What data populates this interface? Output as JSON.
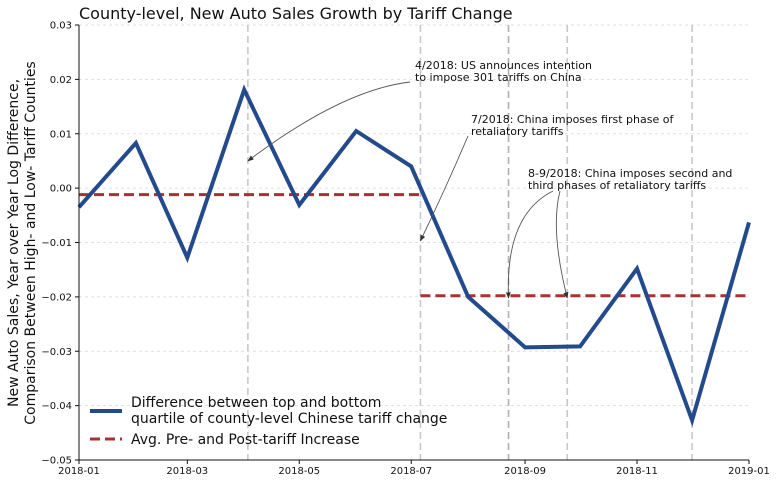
{
  "chart_data": {
    "type": "line",
    "title": "County-level, New Auto Sales Growth by Tariff Change",
    "ylabel_lines": [
      "New Auto Sales, Year over Year Log Difference,",
      "Comparison Between High- and Low- Tariff Counties"
    ],
    "xlabel": "",
    "xlim": [
      "2018-01-01",
      "2019-01-01"
    ],
    "ylim": [
      -0.05,
      0.03
    ],
    "xticks": [
      {
        "date": "2018-01-01",
        "label": "2018-01"
      },
      {
        "date": "2018-03-01",
        "label": "2018-03"
      },
      {
        "date": "2018-05-01",
        "label": "2018-05"
      },
      {
        "date": "2018-07-01",
        "label": "2018-07"
      },
      {
        "date": "2018-09-01",
        "label": "2018-09"
      },
      {
        "date": "2018-11-01",
        "label": "2018-11"
      },
      {
        "date": "2019-01-01",
        "label": "2019-01"
      }
    ],
    "yticks": [
      -0.05,
      -0.04,
      -0.03,
      -0.02,
      -0.01,
      0.0,
      0.01,
      0.02,
      0.03
    ],
    "ytick_labels": [
      "−0.05",
      "−0.04",
      "−0.03",
      "−0.02",
      "−0.01",
      "0.00",
      "0.01",
      "0.02",
      "0.03"
    ],
    "grid": "horizontal dashed",
    "series": [
      {
        "name": "Difference between top and bottom quartile of county-level Chinese tariff change",
        "legend_lines": [
          "Difference between top and bottom",
          "quartile of county-level Chinese tariff change"
        ],
        "color": "#234a8c",
        "x": [
          "2018-01-01",
          "2018-02-01",
          "2018-03-01",
          "2018-04-01",
          "2018-05-01",
          "2018-06-01",
          "2018-07-01",
          "2018-08-01",
          "2018-09-01",
          "2018-10-01",
          "2018-11-01",
          "2018-12-01",
          "2019-01-01"
        ],
        "y": [
          -0.0035,
          0.0083,
          -0.0128,
          0.0181,
          -0.0031,
          0.0105,
          0.004,
          -0.02,
          -0.0293,
          -0.0291,
          -0.0148,
          -0.0427,
          -0.0063
        ]
      }
    ],
    "reference_lines": {
      "name": "Avg. Pre- and Post-tariff Increase",
      "color": "#a83232",
      "segments": [
        {
          "x_start": "2018-01-01",
          "x_end": "2018-07-06",
          "y": -0.0012
        },
        {
          "x_start": "2018-07-06",
          "x_end": "2019-01-01",
          "y": -0.0198
        }
      ]
    },
    "event_lines": [
      {
        "date": "2018-04-03",
        "color": "#c8c8c8"
      },
      {
        "date": "2018-07-06",
        "color": "#c8c8c8"
      },
      {
        "date": "2018-08-23",
        "color": "#b0b0b0"
      },
      {
        "date": "2018-09-24",
        "color": "#c8c8c8"
      },
      {
        "date": "2018-12-01",
        "color": "#c8c8c8"
      }
    ],
    "annotations": [
      {
        "lines": [
          "4/2018: US announces intention",
          "to impose 301 tariffs on China"
        ],
        "arrows_to": [
          {
            "x": "2018-04-03",
            "y": 0.005
          }
        ]
      },
      {
        "lines": [
          "7/2018: China imposes first phase of",
          "retaliatory tariffs"
        ],
        "arrows_to": [
          {
            "x": "2018-07-06",
            "y": -0.0097
          }
        ]
      },
      {
        "lines": [
          "8-9/2018: China imposes second and",
          "third phases of retaliatory tariffs"
        ],
        "arrows_to": [
          {
            "x": "2018-08-23",
            "y": -0.0202
          },
          {
            "x": "2018-09-24",
            "y": -0.0202
          }
        ]
      }
    ],
    "legend": {
      "location": "lower-left",
      "entries": [
        {
          "lines": [
            "Difference between top and bottom",
            "quartile of county-level Chinese tariff change"
          ],
          "color": "#234a8c",
          "style": "solid"
        },
        {
          "lines": [
            "Avg. Pre- and Post-tariff Increase"
          ],
          "color": "#a83232",
          "style": "dashed"
        }
      ]
    }
  }
}
